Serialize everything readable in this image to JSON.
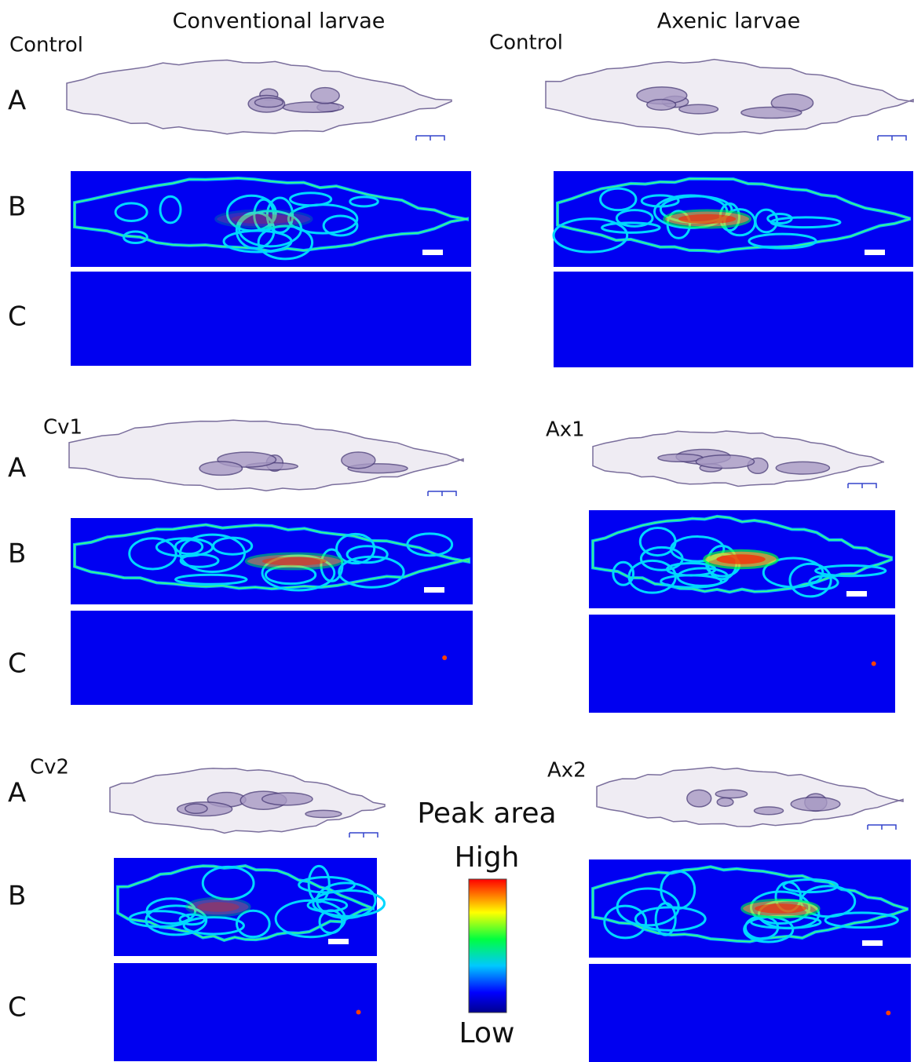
{
  "headers": [
    "Conventional larvae",
    "Axenic larvae"
  ],
  "panels": [
    {
      "label": "Control",
      "rows": [
        "A",
        "B",
        "C"
      ]
    },
    {
      "label": "Control"
    },
    {
      "label": "Cv1",
      "rows": [
        "A",
        "B",
        "C"
      ]
    },
    {
      "label": "Ax1"
    },
    {
      "label": "Cv2",
      "rows": [
        "A",
        "B",
        "C"
      ]
    },
    {
      "label": "Ax2"
    }
  ],
  "legend": {
    "title": "Peak area",
    "high": "High",
    "low": "Low"
  }
}
